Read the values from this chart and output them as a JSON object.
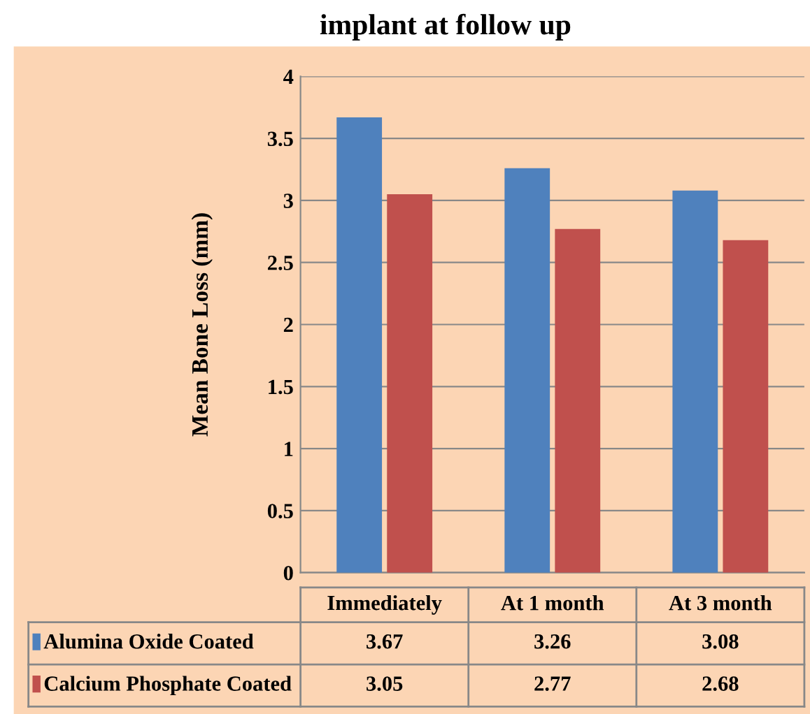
{
  "chart_data": {
    "type": "bar",
    "title": "implant at follow up",
    "ylabel": "Mean Bone Loss (mm)",
    "categories": [
      "Immediately",
      "At 1 month",
      "At 3 month"
    ],
    "series": [
      {
        "name": "Alumina Oxide Coated",
        "color": "#4f81bd",
        "values": [
          3.67,
          3.26,
          3.08
        ]
      },
      {
        "name": "Calcium Phosphate Coated",
        "color": "#c0504d",
        "values": [
          3.05,
          2.77,
          2.68
        ]
      }
    ],
    "ylim": [
      0,
      4
    ],
    "yticks": [
      0,
      0.5,
      1,
      1.5,
      2,
      2.5,
      3,
      3.5,
      4
    ],
    "grid": "y",
    "data_labels": true,
    "legend": "bottom left"
  }
}
